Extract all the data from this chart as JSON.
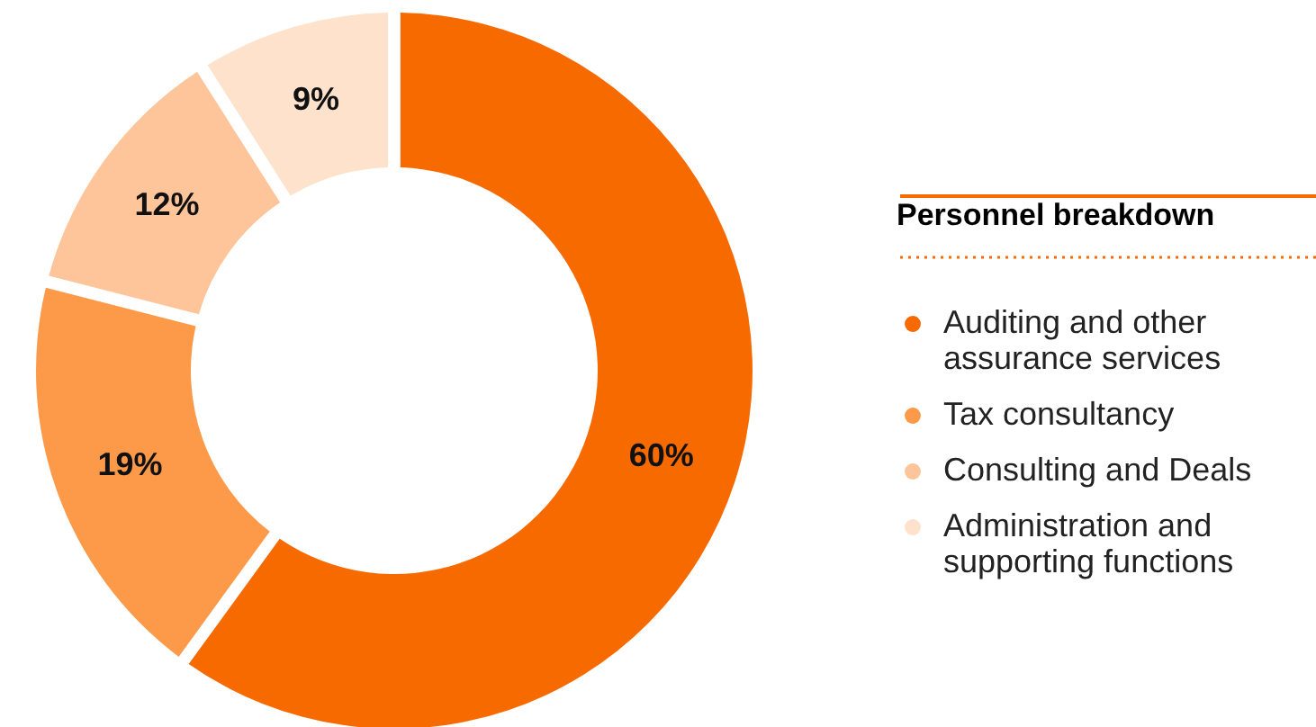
{
  "chart_data": {
    "type": "donut",
    "legend_title": "Personnel breakdown",
    "categories": [
      "Auditing and other assurance services",
      "Tax consultancy",
      "Consulting and Deals",
      "Administration and supporting functions"
    ],
    "values": [
      60,
      19,
      12,
      9
    ],
    "colors": [
      "#f76a00",
      "#fd9a4a",
      "#fec59a",
      "#fee2cc"
    ],
    "value_labels": [
      "60%",
      "19%",
      "12%",
      "9%"
    ],
    "legend": "right"
  }
}
